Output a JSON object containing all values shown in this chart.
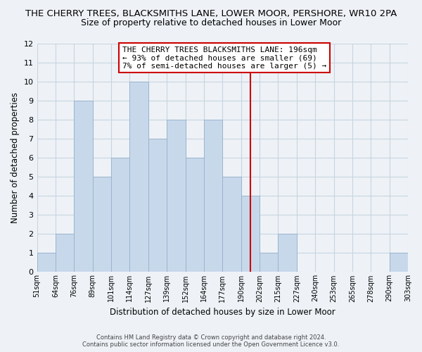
{
  "title": "THE CHERRY TREES, BLACKSMITHS LANE, LOWER MOOR, PERSHORE, WR10 2PA",
  "subtitle": "Size of property relative to detached houses in Lower Moor",
  "xlabel": "Distribution of detached houses by size in Lower Moor",
  "ylabel": "Number of detached properties",
  "bins": [
    51,
    64,
    76,
    89,
    101,
    114,
    127,
    139,
    152,
    164,
    177,
    190,
    202,
    215,
    227,
    240,
    253,
    265,
    278,
    290,
    303
  ],
  "bin_labels": [
    "51sqm",
    "64sqm",
    "76sqm",
    "89sqm",
    "101sqm",
    "114sqm",
    "127sqm",
    "139sqm",
    "152sqm",
    "164sqm",
    "177sqm",
    "190sqm",
    "202sqm",
    "215sqm",
    "227sqm",
    "240sqm",
    "253sqm",
    "265sqm",
    "278sqm",
    "290sqm",
    "303sqm"
  ],
  "counts": [
    1,
    2,
    9,
    5,
    6,
    10,
    7,
    8,
    6,
    8,
    5,
    4,
    1,
    2,
    0,
    0,
    0,
    0,
    0,
    1
  ],
  "bar_color": "#c8d8eb",
  "bar_edge_color": "#9ab4cc",
  "grid_color": "#c8d4e0",
  "marker_value": 196,
  "marker_color": "#cc0000",
  "annotation_title": "THE CHERRY TREES BLACKSMITHS LANE: 196sqm",
  "annotation_line1": "← 93% of detached houses are smaller (69)",
  "annotation_line2": "7% of semi-detached houses are larger (5) →",
  "annotation_box_color": "#ffffff",
  "annotation_box_edge": "#cc0000",
  "ylim": [
    0,
    12
  ],
  "yticks": [
    0,
    1,
    2,
    3,
    4,
    5,
    6,
    7,
    8,
    9,
    10,
    11,
    12
  ],
  "footer1": "Contains HM Land Registry data © Crown copyright and database right 2024.",
  "footer2": "Contains public sector information licensed under the Open Government Licence v3.0.",
  "bg_color": "#eef2f7",
  "title_fontsize": 9.5,
  "subtitle_fontsize": 9
}
